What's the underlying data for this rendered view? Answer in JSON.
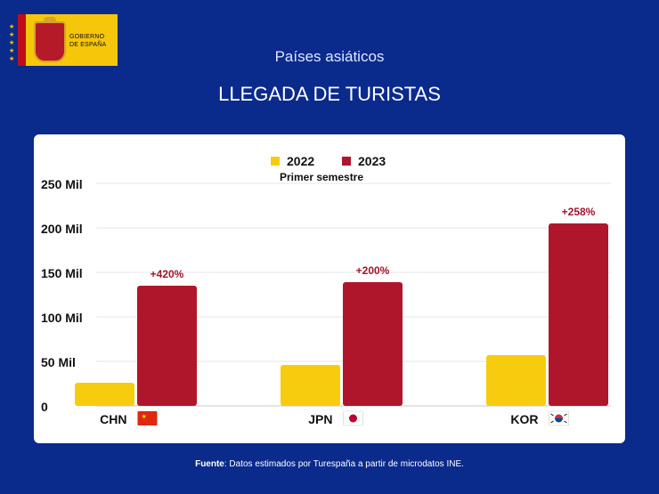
{
  "header": {
    "logo_text_line1": "GOBIERNO",
    "logo_text_line2": "DE ESPAÑA",
    "subtitle": "Países asiáticos",
    "title": "LLEGADA DE TURISTAS"
  },
  "footer": {
    "source_label": "Fuente",
    "source_text": ": Datos estimados por Turespaña a partir de microdatos INE."
  },
  "colors": {
    "background": "#0a2a8c",
    "series_2022": "#f7cc0f",
    "series_2023": "#b0162b",
    "label_red": "#a3142a"
  },
  "chart_data": {
    "type": "bar",
    "title": "LLEGADA DE TURISTAS",
    "subtitle": "Primer semestre",
    "categories": [
      "CHN",
      "JPN",
      "KOR"
    ],
    "flags": [
      "china-flag-icon",
      "japan-flag-icon",
      "korea-flag-icon"
    ],
    "series": [
      {
        "name": "2022",
        "values": [
          26,
          46,
          57
        ]
      },
      {
        "name": "2023",
        "values": [
          135,
          139,
          205
        ]
      }
    ],
    "growth_labels": [
      "+420%",
      "+200%",
      "+258%"
    ],
    "yticks": [
      0,
      50,
      100,
      150,
      200,
      250
    ],
    "ytick_labels": [
      "0",
      "50  Mil",
      "100  Mil",
      "150  Mil",
      "200  Mil",
      "250  Mil"
    ],
    "ylim": [
      0,
      250
    ],
    "xlabel": "",
    "ylabel": "",
    "grid": true,
    "legend": "top-center"
  }
}
